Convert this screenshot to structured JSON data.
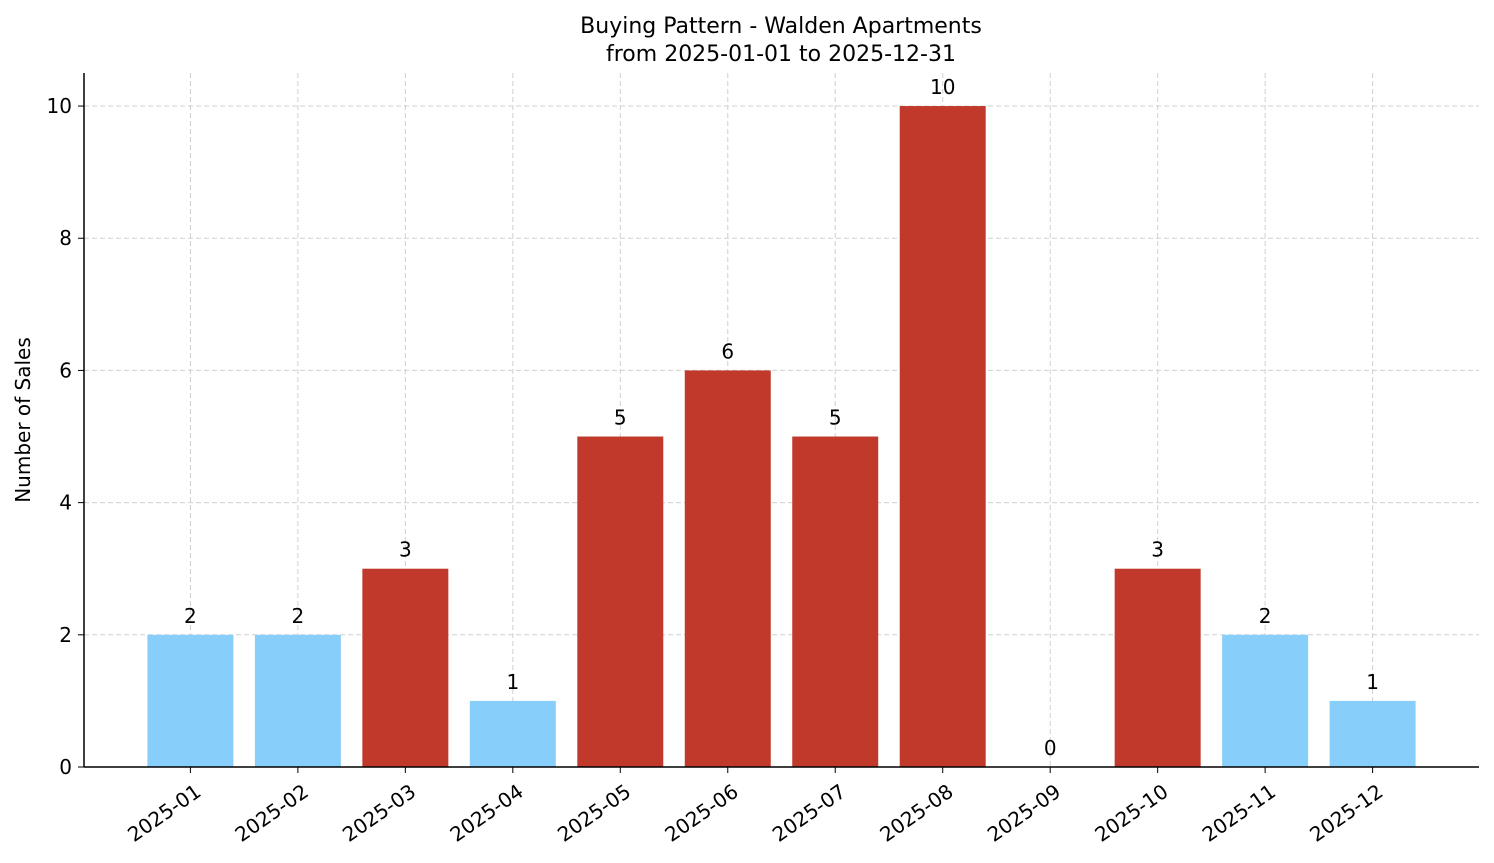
{
  "chart_data": {
    "type": "bar",
    "title": "Buying Pattern - Walden Apartments",
    "subtitle": "from 2025-01-01 to 2025-12-31",
    "y_label": "Number of Sales",
    "categories": [
      "2025-01",
      "2025-02",
      "2025-03",
      "2025-04",
      "2025-05",
      "2025-06",
      "2025-07",
      "2025-08",
      "2025-09",
      "2025-10",
      "2025-11",
      "2025-12"
    ],
    "values": [
      2,
      2,
      3,
      1,
      5,
      6,
      5,
      10,
      0,
      3,
      2,
      1
    ],
    "colors": [
      "#87cefa",
      "#87cefa",
      "#c0392b",
      "#87cefa",
      "#c0392b",
      "#c0392b",
      "#c0392b",
      "#c0392b",
      "#87cefa",
      "#c0392b",
      "#87cefa",
      "#87cefa"
    ],
    "ylim": [
      0,
      10.5
    ],
    "yticks": [
      0,
      2,
      4,
      6,
      8,
      10
    ],
    "grid": true
  }
}
